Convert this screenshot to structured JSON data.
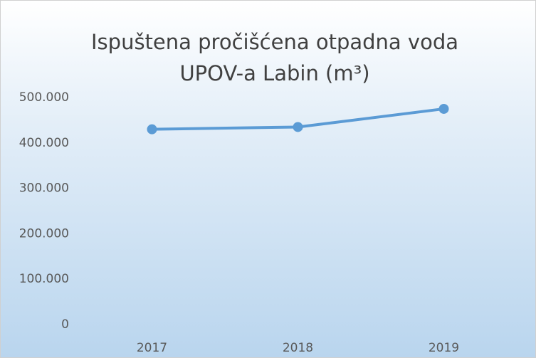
{
  "chart_data": {
    "type": "line",
    "title": "Ispuštena pročišćena otpadna voda UPOV-a Labin (m³)",
    "categories": [
      "2017",
      "2018",
      "2019"
    ],
    "series": [
      {
        "name": "UPOV-a Labin",
        "color": "#5b9bd5",
        "values": [
          430000,
          435000,
          475000
        ]
      }
    ],
    "ylim": [
      0,
      500000
    ],
    "yticks": [
      0,
      {
        "value": 100000,
        "label": "100.000"
      },
      {
        "value": 200000,
        "label": "200.000"
      },
      {
        "value": 300000,
        "label": "300.000"
      },
      {
        "value": 400000,
        "label": "400.000"
      },
      {
        "value": 500000,
        "label": "500.000"
      }
    ],
    "grid": true
  }
}
